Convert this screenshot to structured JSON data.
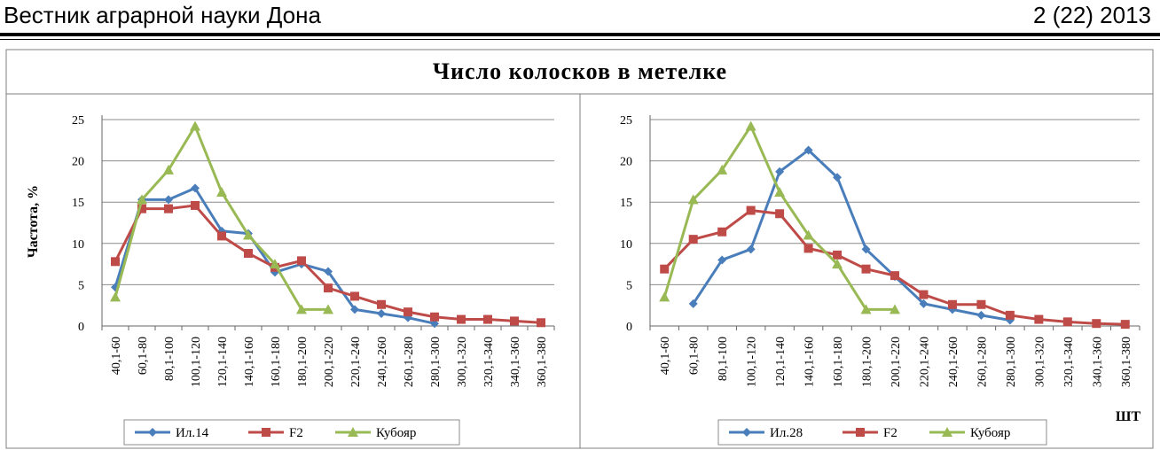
{
  "header": {
    "journal": "Вестник аграрной науки Дона",
    "issue": "2 (22) 2013"
  },
  "figure": {
    "title": "Число колосков в метелке",
    "ylabel": "Частота, %",
    "xunit": "ШТ"
  },
  "colors": {
    "series1": "#4a7ebb",
    "series2": "#be4b48",
    "series3": "#98b954"
  },
  "chart_data": [
    {
      "type": "line",
      "categories": [
        "40,1-60",
        "60,1-80",
        "80,1-100",
        "100,1-120",
        "120,1-140",
        "140,1-160",
        "160,1-180",
        "180,1-200",
        "200,1-220",
        "220,1-240",
        "240,1-260",
        "260,1-280",
        "280,1-300",
        "300,1-320",
        "320,1-340",
        "340,1-360",
        "360,1-380"
      ],
      "yticks": [
        "0",
        "5",
        "10",
        "15",
        "20",
        "25"
      ],
      "ylim": [
        0,
        25
      ],
      "grid": true,
      "legend": "bottom",
      "series": [
        {
          "name": "Ил.14",
          "marker": "diamond",
          "values": [
            4.7,
            15.3,
            15.3,
            16.7,
            11.5,
            11.2,
            6.5,
            7.5,
            6.6,
            2.0,
            1.5,
            1.0,
            0.3,
            null,
            null,
            null,
            null
          ]
        },
        {
          "name": "F2",
          "marker": "square",
          "values": [
            7.8,
            14.2,
            14.2,
            14.6,
            10.9,
            8.8,
            7.1,
            7.9,
            4.6,
            3.6,
            2.6,
            1.7,
            1.1,
            0.8,
            0.8,
            0.6,
            0.4
          ]
        },
        {
          "name": "Кубояр",
          "marker": "triangle",
          "values": [
            3.5,
            15.3,
            18.9,
            24.2,
            16.2,
            11.0,
            7.5,
            2.0,
            2.0,
            null,
            null,
            null,
            null,
            null,
            null,
            null,
            null
          ]
        }
      ]
    },
    {
      "type": "line",
      "categories": [
        "40,1-60",
        "60,1-80",
        "80,1-100",
        "100,1-120",
        "120,1-140",
        "140,1-160",
        "160,1-180",
        "180,1-200",
        "200,1-220",
        "220,1-240",
        "240,1-260",
        "260,1-280",
        "280,1-300",
        "300,1-320",
        "320,1-340",
        "340,1-360",
        "360,1-380"
      ],
      "yticks": [
        "0",
        "5",
        "10",
        "15",
        "20",
        "25"
      ],
      "ylim": [
        0,
        25
      ],
      "grid": true,
      "legend": "bottom",
      "series": [
        {
          "name": "Ил.28",
          "marker": "diamond",
          "values": [
            null,
            2.7,
            8.0,
            9.3,
            18.7,
            21.3,
            18.0,
            9.3,
            6.0,
            2.7,
            2.0,
            1.3,
            0.7,
            null,
            null,
            null,
            null
          ]
        },
        {
          "name": "F2",
          "marker": "square",
          "values": [
            6.9,
            10.5,
            11.4,
            14.0,
            13.6,
            9.4,
            8.6,
            6.9,
            6.1,
            3.8,
            2.6,
            2.6,
            1.3,
            0.8,
            0.5,
            0.3,
            0.2
          ]
        },
        {
          "name": "Кубояр",
          "marker": "triangle",
          "values": [
            3.5,
            15.3,
            18.9,
            24.2,
            16.2,
            11.0,
            7.5,
            2.0,
            2.0,
            null,
            null,
            null,
            null,
            null,
            null,
            null,
            null
          ]
        }
      ]
    }
  ]
}
